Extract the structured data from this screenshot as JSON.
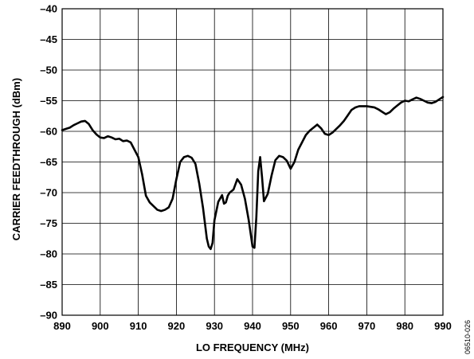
{
  "chart_data": {
    "type": "line",
    "title": "",
    "xlabel": "LO FREQUENCY (MHz)",
    "ylabel": "CARRIER FEEDTHROUGH (dBm)",
    "xlim": [
      890,
      990
    ],
    "ylim": [
      -90,
      -40
    ],
    "xticks": [
      890,
      900,
      910,
      920,
      930,
      940,
      950,
      960,
      970,
      980,
      990
    ],
    "yticks": [
      -40,
      -45,
      -50,
      -55,
      -60,
      -65,
      -70,
      -75,
      -80,
      -85,
      -90
    ],
    "xtick_labels": [
      "890",
      "900",
      "910",
      "920",
      "930",
      "940",
      "950",
      "960",
      "970",
      "980",
      "990"
    ],
    "ytick_labels": [
      "–40",
      "–45",
      "–50",
      "–55",
      "–60",
      "–65",
      "–70",
      "–75",
      "–80",
      "–85",
      "–90"
    ],
    "grid": true,
    "line_color": "#000000",
    "series": [
      {
        "x": [
          890,
          891,
          892,
          893,
          894,
          895,
          896,
          897,
          898,
          899,
          900,
          901,
          902,
          903,
          904,
          905,
          906,
          907,
          908,
          909,
          910,
          911,
          912,
          913,
          914,
          915,
          916,
          917,
          918,
          919,
          920,
          921,
          922,
          923,
          924,
          925,
          926,
          927,
          928,
          928.5,
          929,
          929.5,
          930,
          931,
          932,
          932.5,
          933,
          933.5,
          934,
          935,
          936,
          937,
          938,
          939,
          940,
          940.5,
          941,
          941.5,
          942,
          942.5,
          943,
          944,
          945,
          946,
          947,
          948,
          949,
          950,
          951,
          952,
          953,
          954,
          955,
          956,
          957,
          958,
          959,
          960,
          961,
          962,
          963,
          964,
          965,
          966,
          967,
          968,
          969,
          970,
          971,
          972,
          973,
          974,
          975,
          976,
          977,
          978,
          979,
          980,
          981,
          982,
          983,
          984,
          985,
          986,
          987,
          988,
          989,
          990
        ],
        "y": [
          -59.8,
          -59.6,
          -59.4,
          -59.0,
          -58.7,
          -58.4,
          -58.3,
          -58.8,
          -59.8,
          -60.5,
          -61.0,
          -61.1,
          -60.8,
          -61.0,
          -61.3,
          -61.2,
          -61.6,
          -61.5,
          -61.8,
          -63.0,
          -64.2,
          -67.0,
          -70.5,
          -71.6,
          -72.2,
          -72.8,
          -73.0,
          -72.8,
          -72.4,
          -71.0,
          -67.8,
          -65.0,
          -64.2,
          -64.0,
          -64.3,
          -65.3,
          -68.5,
          -72.5,
          -77.5,
          -78.8,
          -79.2,
          -78.2,
          -74.5,
          -71.5,
          -70.4,
          -71.8,
          -71.6,
          -70.5,
          -70.0,
          -69.5,
          -67.8,
          -68.7,
          -71.0,
          -74.5,
          -78.8,
          -79.0,
          -74.0,
          -66.5,
          -64.2,
          -67.5,
          -71.4,
          -70.2,
          -67.2,
          -64.7,
          -64.0,
          -64.2,
          -64.8,
          -66.1,
          -65.0,
          -63.0,
          -61.8,
          -60.6,
          -59.9,
          -59.4,
          -58.9,
          -59.5,
          -60.4,
          -60.6,
          -60.2,
          -59.6,
          -59.0,
          -58.3,
          -57.4,
          -56.5,
          -56.1,
          -55.9,
          -55.9,
          -55.9,
          -56.0,
          -56.1,
          -56.4,
          -56.8,
          -57.2,
          -56.9,
          -56.3,
          -55.8,
          -55.3,
          -55.0,
          -55.1,
          -54.8,
          -54.5,
          -54.7,
          -55.0,
          -55.3,
          -55.4,
          -55.2,
          -54.8,
          -54.4
        ]
      }
    ]
  },
  "figure_id": "06510-026"
}
